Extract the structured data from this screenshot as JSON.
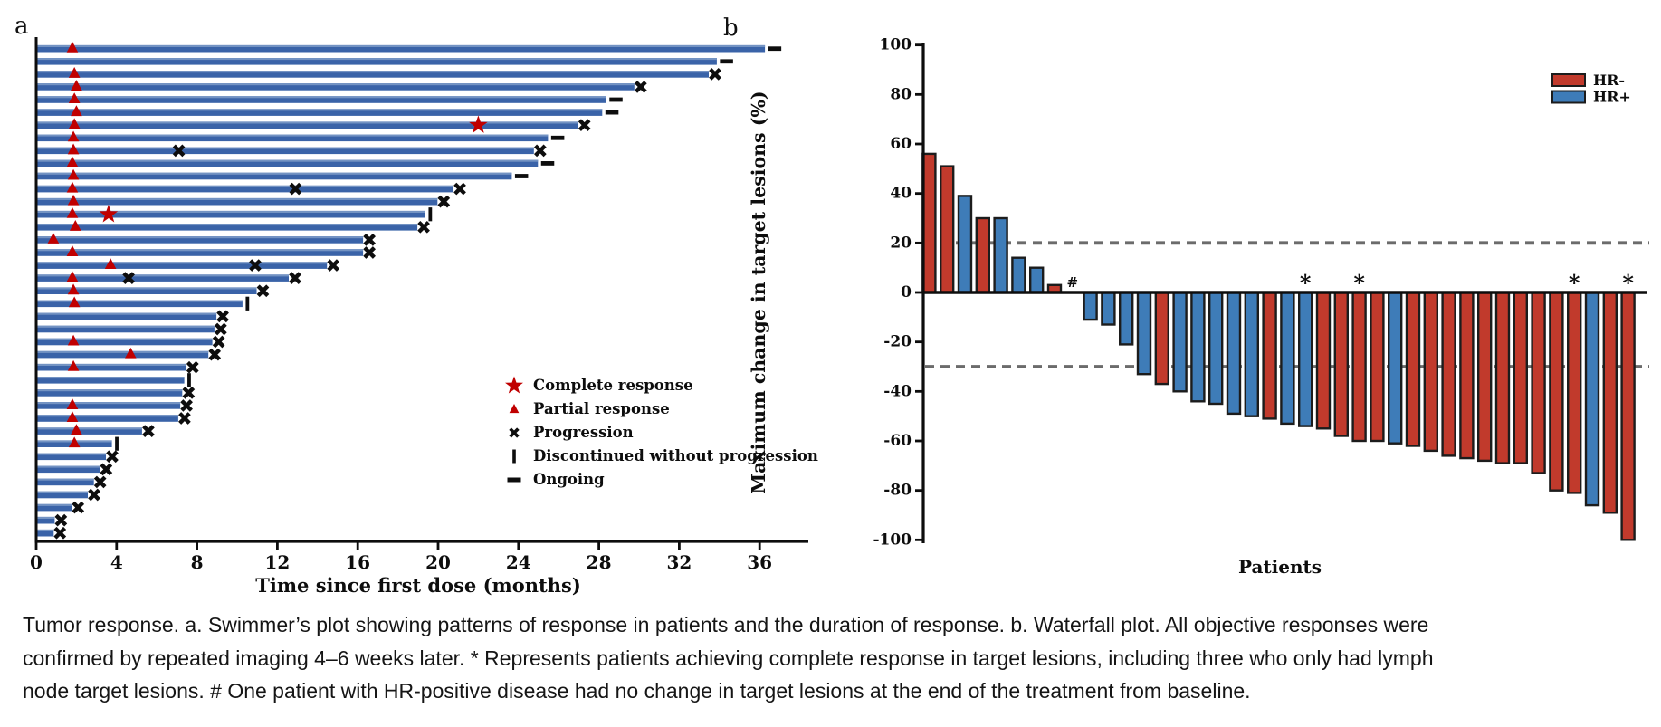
{
  "page": {
    "background": "#ffffff"
  },
  "panel_a": {
    "label": "a",
    "xlabel": "Time since first dose (months)",
    "legend": [
      {
        "symbol": "star",
        "label": "Complete response"
      },
      {
        "symbol": "triangle",
        "label": "Partial response"
      },
      {
        "symbol": "x",
        "label": "Progression"
      },
      {
        "symbol": "vbar",
        "label": "Discontinued without progression"
      },
      {
        "symbol": "dash",
        "label": "Ongoing"
      }
    ]
  },
  "panel_b": {
    "label": "b",
    "xlabel": "Patients",
    "ylabel": "Maximum change in target lesions (%)",
    "legend": [
      {
        "label": "HR-",
        "color": "#C13A2C"
      },
      {
        "label": "HR+",
        "color": "#3E7CB8"
      }
    ]
  },
  "caption": {
    "lines": [
      "Tumor response. a. Swimmer’s plot showing patterns of response in patients and the duration of response. b. Waterfall plot. All objective responses were",
      "confirmed by repeated imaging 4–6 weeks later. * Represents patients achieving complete response in target lesions, including three who only had lymph",
      "node target lesions. # One patient with HR-positive disease had no change in target lesions at the end of the treatment from baseline."
    ]
  },
  "chart_data": [
    {
      "id": "swimmer",
      "type": "bar",
      "orientation": "horizontal",
      "title": "",
      "xlabel": "Time since first dose (months)",
      "ylabel": "",
      "xlim": [
        0,
        38.5
      ],
      "xticks": [
        0,
        4,
        8,
        12,
        16,
        20,
        24,
        28,
        32,
        36
      ],
      "grid": false,
      "bar_color": "#3A63A8",
      "bar_highlight": "#7E9BC8",
      "response_marker_color": "#C00000",
      "event_marker_color": "#0D0D0D",
      "legend_position": "lower right of plot area",
      "patients": [
        {
          "duration": 36.2,
          "end": "ongoing",
          "markers": [
            {
              "type": "pr",
              "t": 1.8
            }
          ]
        },
        {
          "duration": 33.8,
          "end": "ongoing",
          "markers": []
        },
        {
          "duration": 33.4,
          "end": "x",
          "markers": [
            {
              "type": "pr",
              "t": 1.9
            }
          ]
        },
        {
          "duration": 29.7,
          "end": "x",
          "markers": [
            {
              "type": "pr",
              "t": 2.0
            }
          ]
        },
        {
          "duration": 28.3,
          "end": "ongoing",
          "markers": [
            {
              "type": "pr",
              "t": 1.9
            }
          ]
        },
        {
          "duration": 28.1,
          "end": "ongoing",
          "markers": [
            {
              "type": "pr",
              "t": 2.0
            }
          ]
        },
        {
          "duration": 26.9,
          "end": "x",
          "markers": [
            {
              "type": "pr",
              "t": 1.9
            },
            {
              "type": "cr",
              "t": 22.0
            }
          ]
        },
        {
          "duration": 25.4,
          "end": "ongoing",
          "markers": [
            {
              "type": "pr",
              "t": 1.85
            }
          ]
        },
        {
          "duration": 24.7,
          "end": "x",
          "markers": [
            {
              "type": "pr",
              "t": 1.85
            },
            {
              "type": "x",
              "t": 7.1
            }
          ]
        },
        {
          "duration": 24.9,
          "end": "ongoing",
          "markers": [
            {
              "type": "pr",
              "t": 1.8
            }
          ]
        },
        {
          "duration": 23.6,
          "end": "ongoing",
          "markers": [
            {
              "type": "pr",
              "t": 1.85
            }
          ]
        },
        {
          "duration": 20.7,
          "end": "x",
          "markers": [
            {
              "type": "pr",
              "t": 1.8
            },
            {
              "type": "x",
              "t": 12.9
            }
          ]
        },
        {
          "duration": 19.9,
          "end": "x",
          "markers": [
            {
              "type": "pr",
              "t": 1.85
            }
          ]
        },
        {
          "duration": 19.3,
          "end": "disc",
          "markers": [
            {
              "type": "pr",
              "t": 1.8
            },
            {
              "type": "cr",
              "t": 3.6
            }
          ]
        },
        {
          "duration": 18.9,
          "end": "x",
          "markers": [
            {
              "type": "pr",
              "t": 1.95
            }
          ]
        },
        {
          "duration": 16.2,
          "end": "x",
          "markers": [
            {
              "type": "pr",
              "t": 0.85
            }
          ]
        },
        {
          "duration": 16.2,
          "end": "x",
          "markers": [
            {
              "type": "pr",
              "t": 1.8
            }
          ]
        },
        {
          "duration": 14.4,
          "end": "x",
          "markers": [
            {
              "type": "pr",
              "t": 3.7
            },
            {
              "type": "x",
              "t": 10.9
            }
          ]
        },
        {
          "duration": 12.5,
          "end": "x",
          "markers": [
            {
              "type": "pr",
              "t": 1.8
            },
            {
              "type": "x",
              "t": 4.6
            }
          ]
        },
        {
          "duration": 10.9,
          "end": "x",
          "markers": [
            {
              "type": "pr",
              "t": 1.85
            }
          ]
        },
        {
          "duration": 10.2,
          "end": "disc",
          "markers": [
            {
              "type": "pr",
              "t": 1.9
            }
          ]
        },
        {
          "duration": 8.9,
          "end": "x",
          "markers": []
        },
        {
          "duration": 8.8,
          "end": "x",
          "markers": []
        },
        {
          "duration": 8.7,
          "end": "x",
          "markers": [
            {
              "type": "pr",
              "t": 1.85
            }
          ]
        },
        {
          "duration": 8.5,
          "end": "x",
          "markers": [
            {
              "type": "pr",
              "t": 4.7
            }
          ]
        },
        {
          "duration": 7.4,
          "end": "x",
          "markers": [
            {
              "type": "pr",
              "t": 1.85
            }
          ]
        },
        {
          "duration": 7.3,
          "end": "disc",
          "markers": []
        },
        {
          "duration": 7.2,
          "end": "x",
          "markers": []
        },
        {
          "duration": 7.1,
          "end": "x",
          "markers": [
            {
              "type": "pr",
              "t": 1.8
            }
          ]
        },
        {
          "duration": 7.0,
          "end": "x",
          "markers": [
            {
              "type": "pr",
              "t": 1.8
            }
          ]
        },
        {
          "duration": 5.2,
          "end": "x",
          "markers": [
            {
              "type": "pr",
              "t": 2.0
            }
          ]
        },
        {
          "duration": 3.7,
          "end": "disc",
          "markers": [
            {
              "type": "pr",
              "t": 1.9
            }
          ]
        },
        {
          "duration": 3.4,
          "end": "x",
          "markers": []
        },
        {
          "duration": 3.1,
          "end": "x",
          "markers": []
        },
        {
          "duration": 2.8,
          "end": "x",
          "markers": []
        },
        {
          "duration": 2.5,
          "end": "x",
          "markers": []
        },
        {
          "duration": 1.7,
          "end": "x",
          "markers": []
        },
        {
          "duration": 0.85,
          "end": "x",
          "markers": []
        },
        {
          "duration": 0.8,
          "end": "x",
          "markers": []
        }
      ]
    },
    {
      "id": "waterfall",
      "type": "bar",
      "title": "",
      "xlabel": "Patients",
      "ylabel": "Maximum change in target lesions (%)",
      "ylim": [
        -100,
        100
      ],
      "yticks": [
        100,
        80,
        60,
        40,
        20,
        0,
        -20,
        -40,
        -60,
        -80,
        -100
      ],
      "grid": false,
      "reference_lines": [
        20,
        -30
      ],
      "reference_line_color": "#6B6B6B",
      "bar_outline": "#1C1C1C",
      "groups": {
        "HR-": "#C13A2C",
        "HR+": "#3E7CB8"
      },
      "legend_position": "upper right",
      "bars": [
        {
          "value": 56,
          "group": "HR-"
        },
        {
          "value": 51,
          "group": "HR-"
        },
        {
          "value": 39,
          "group": "HR+"
        },
        {
          "value": 30,
          "group": "HR-"
        },
        {
          "value": 30,
          "group": "HR+"
        },
        {
          "value": 14,
          "group": "HR+"
        },
        {
          "value": 10,
          "group": "HR+"
        },
        {
          "value": 3,
          "group": "HR-"
        },
        {
          "value": 0,
          "group": "HR+",
          "annotation": "#"
        },
        {
          "value": -11,
          "group": "HR+"
        },
        {
          "value": -13,
          "group": "HR+"
        },
        {
          "value": -21,
          "group": "HR+"
        },
        {
          "value": -33,
          "group": "HR+"
        },
        {
          "value": -37,
          "group": "HR-"
        },
        {
          "value": -40,
          "group": "HR+"
        },
        {
          "value": -44,
          "group": "HR+"
        },
        {
          "value": -45,
          "group": "HR+"
        },
        {
          "value": -49,
          "group": "HR+"
        },
        {
          "value": -50,
          "group": "HR+"
        },
        {
          "value": -51,
          "group": "HR-"
        },
        {
          "value": -53,
          "group": "HR+"
        },
        {
          "value": -54,
          "group": "HR+",
          "annotation": "*"
        },
        {
          "value": -55,
          "group": "HR-"
        },
        {
          "value": -58,
          "group": "HR-"
        },
        {
          "value": -60,
          "group": "HR-",
          "annotation": "*"
        },
        {
          "value": -60,
          "group": "HR-"
        },
        {
          "value": -61,
          "group": "HR+"
        },
        {
          "value": -62,
          "group": "HR-"
        },
        {
          "value": -64,
          "group": "HR-"
        },
        {
          "value": -66,
          "group": "HR-"
        },
        {
          "value": -67,
          "group": "HR-"
        },
        {
          "value": -68,
          "group": "HR-"
        },
        {
          "value": -69,
          "group": "HR-"
        },
        {
          "value": -69,
          "group": "HR-"
        },
        {
          "value": -73,
          "group": "HR-"
        },
        {
          "value": -80,
          "group": "HR-"
        },
        {
          "value": -81,
          "group": "HR-",
          "annotation": "*"
        },
        {
          "value": -86,
          "group": "HR+"
        },
        {
          "value": -89,
          "group": "HR-"
        },
        {
          "value": -100,
          "group": "HR-",
          "annotation": "*"
        }
      ]
    }
  ]
}
